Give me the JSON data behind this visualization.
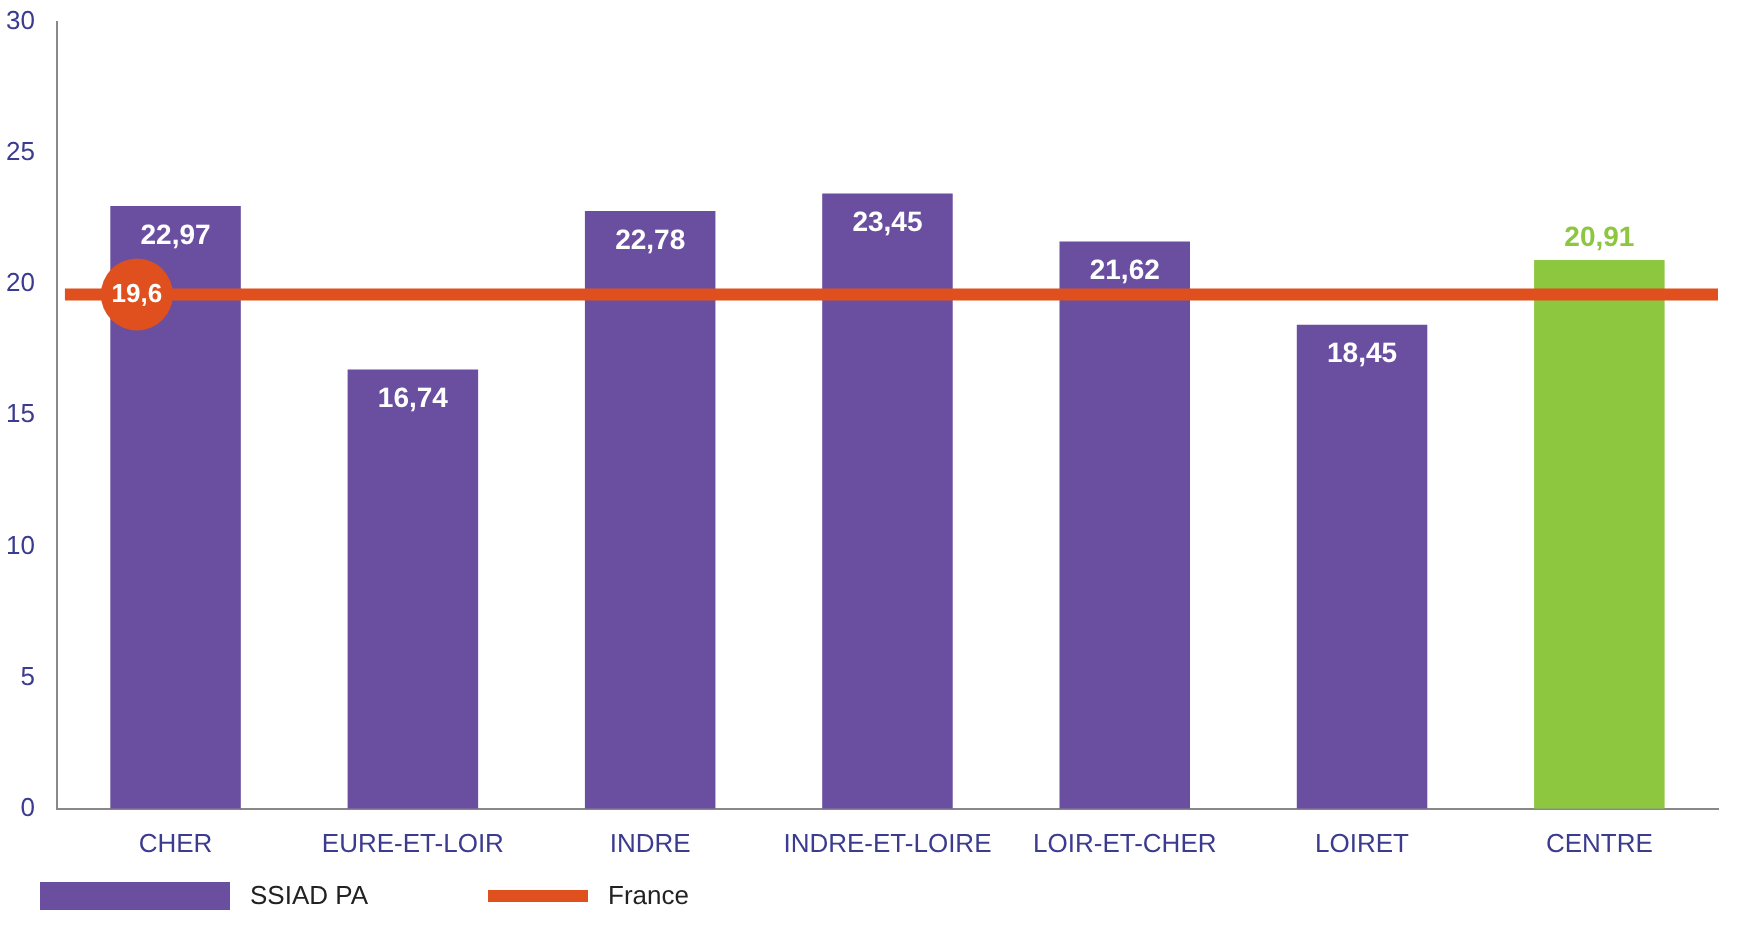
{
  "chart_data": {
    "type": "bar",
    "categories": [
      "CHER",
      "EURE-ET-LOIR",
      "INDRE",
      "INDRE-ET-LOIRE",
      "LOIR-ET-CHER",
      "LOIRET",
      "CENTRE"
    ],
    "series": [
      {
        "name": "SSIAD PA",
        "color": "#6a4fa0",
        "colors": [
          "#6a4fa0",
          "#6a4fa0",
          "#6a4fa0",
          "#6a4fa0",
          "#6a4fa0",
          "#6a4fa0",
          "#8dc63f"
        ],
        "values": [
          22.97,
          16.74,
          22.78,
          23.45,
          21.62,
          18.45,
          20.91
        ],
        "value_labels": [
          "22,97",
          "16,74",
          "22,78",
          "23,45",
          "21,62",
          "18,45",
          "20,91"
        ]
      }
    ],
    "ylim": [
      0,
      30
    ],
    "yticks": [
      0,
      5,
      10,
      15,
      20,
      25,
      30
    ],
    "grid": false,
    "legend": "bottom left",
    "ref_lines": [
      {
        "axis": "y",
        "value": 19.6,
        "label": "France",
        "color": "#e0501e"
      }
    ],
    "annotations": [
      {
        "text": "19,6",
        "y": 19.6
      }
    ]
  }
}
